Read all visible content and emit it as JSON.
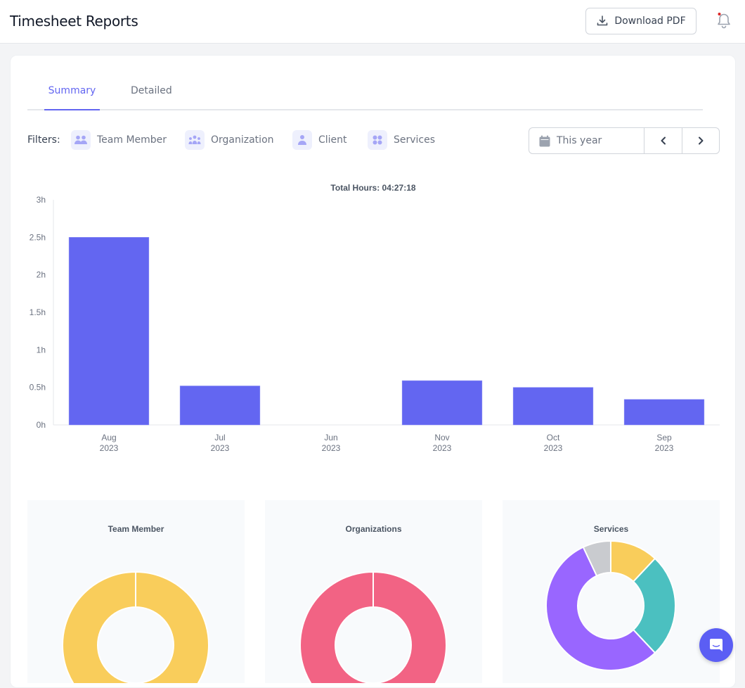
{
  "header": {
    "title": "Timesheet Reports",
    "download_label": "Download PDF"
  },
  "tabs": [
    {
      "label": "Summary",
      "active": true
    },
    {
      "label": "Detailed",
      "active": false
    }
  ],
  "filters": {
    "label": "Filters:",
    "items": [
      {
        "label": "Team Member",
        "icon": "team-icon"
      },
      {
        "label": "Organization",
        "icon": "organization-icon"
      },
      {
        "label": "Client",
        "icon": "user-icon"
      },
      {
        "label": "Services",
        "icon": "grid-icon"
      }
    ]
  },
  "date_range": {
    "label": "This year",
    "prev_icon": "chevron-left-icon",
    "next_icon": "chevron-right-icon"
  },
  "colors": {
    "accent": "#6366f1",
    "bar": "#6366f1",
    "yellow": "#f9cd5b",
    "pink": "#f26384",
    "teal": "#4bc0c0",
    "purple": "#9966ff",
    "gray": "#c9cbcf",
    "chat": "#5b5ef4"
  },
  "chart_data": [
    {
      "type": "bar",
      "title": "Total Hours: 04:27:18",
      "categories": [
        [
          "Aug",
          "2023"
        ],
        [
          "Jul",
          "2023"
        ],
        [
          "Jun",
          "2023"
        ],
        [
          "Nov",
          "2023"
        ],
        [
          "Oct",
          "2023"
        ],
        [
          "Sep",
          "2023"
        ]
      ],
      "values": [
        2.5,
        0.52,
        0,
        0.59,
        0.5,
        0.34
      ],
      "yticks": [
        "0h",
        "0.5h",
        "1h",
        "1.5h",
        "2h",
        "2.5h",
        "3h"
      ],
      "ylim": [
        0,
        3
      ],
      "xlabel": "",
      "ylabel": "",
      "unit": "h",
      "grid": false
    },
    {
      "type": "pie",
      "variant": "doughnut",
      "title": "Team Member",
      "values": [
        50,
        50
      ],
      "colors": [
        "#f9cd5b",
        "#f9cd5b"
      ]
    },
    {
      "type": "pie",
      "variant": "doughnut",
      "title": "Organizations",
      "values": [
        50,
        50
      ],
      "colors": [
        "#f26384",
        "#f26384"
      ]
    },
    {
      "type": "pie",
      "variant": "doughnut",
      "title": "Services",
      "values": [
        12,
        26,
        55,
        7
      ],
      "colors": [
        "#f9cd5b",
        "#4bc0c0",
        "#9966ff",
        "#c9cbcf"
      ]
    }
  ]
}
